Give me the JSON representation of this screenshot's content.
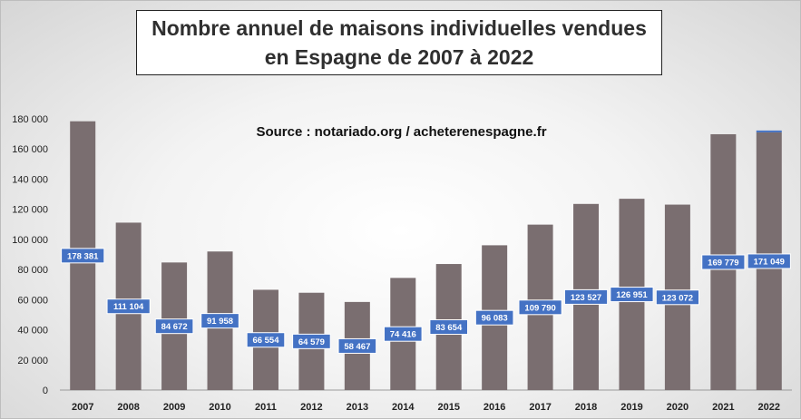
{
  "title_line1": "Nombre annuel de maisons individuelles vendues",
  "title_line2": "en Espagne de 2007 à 2022",
  "source": "Source : notariado.org / acheterenespagne.fr",
  "colors": {
    "bar": "#7a6e70",
    "label_bg": "#4472c4",
    "label_text": "#ffffff",
    "accent_line": "#4472c4"
  },
  "chart_data": {
    "type": "bar",
    "title": "Nombre annuel de maisons individuelles vendues en Espagne de 2007 à 2022",
    "xlabel": "",
    "ylabel": "",
    "ylim": [
      0,
      180000
    ],
    "yticks": [
      "0",
      "20 000",
      "40 000",
      "60 000",
      "80 000",
      "100 000",
      "120 000",
      "140 000",
      "160 000",
      "180 000"
    ],
    "categories": [
      "2007",
      "2008",
      "2009",
      "2010",
      "2011",
      "2012",
      "2013",
      "2014",
      "2015",
      "2016",
      "2017",
      "2018",
      "2019",
      "2020",
      "2021",
      "2022"
    ],
    "values": [
      178381,
      111104,
      84672,
      91958,
      66554,
      64579,
      58467,
      74416,
      83654,
      96083,
      109790,
      123527,
      126951,
      123072,
      169779,
      171049
    ],
    "value_labels": [
      "178 381",
      "111 104",
      "84 672",
      "91 958",
      "66 554",
      "64 579",
      "58 467",
      "74 416",
      "83 654",
      "96 083",
      "109 790",
      "123 527",
      "126 951",
      "123 072",
      "169 779",
      "171 049"
    ],
    "grid": false,
    "legend": "none"
  }
}
